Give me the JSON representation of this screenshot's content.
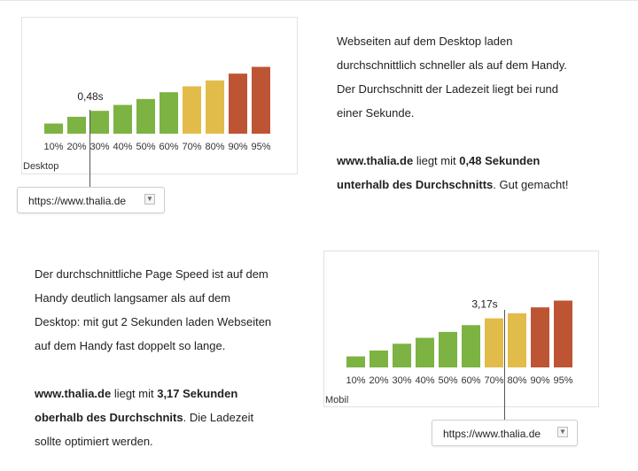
{
  "colors": {
    "green": "#7cb342",
    "yellow": "#e2bc4a",
    "red": "#bd5535",
    "text": "#222222"
  },
  "chart_data": [
    {
      "type": "bar",
      "title": "",
      "device_label": "Desktop",
      "categories": [
        "10%",
        "20%",
        "30%",
        "40%",
        "50%",
        "60%",
        "70%",
        "80%",
        "90%",
        "95%"
      ],
      "values": [
        0.12,
        0.2,
        0.27,
        0.34,
        0.41,
        0.49,
        0.56,
        0.63,
        0.71,
        0.79
      ],
      "bar_colors": [
        "green",
        "green",
        "green",
        "green",
        "green",
        "green",
        "yellow",
        "yellow",
        "red",
        "red"
      ],
      "ylim": [
        0,
        0.9
      ],
      "marker": {
        "value": 0.48,
        "label": "0,48s",
        "category_index": 2
      },
      "select_value": "https://www.thalia.de"
    },
    {
      "type": "bar",
      "title": "",
      "device_label": "Mobil",
      "categories": [
        "10%",
        "20%",
        "30%",
        "40%",
        "50%",
        "60%",
        "70%",
        "80%",
        "90%",
        "95%"
      ],
      "values": [
        0.13,
        0.2,
        0.28,
        0.35,
        0.42,
        0.5,
        0.58,
        0.64,
        0.71,
        0.79
      ],
      "bar_colors": [
        "green",
        "green",
        "green",
        "green",
        "green",
        "green",
        "yellow",
        "yellow",
        "red",
        "red"
      ],
      "ylim": [
        0,
        0.9
      ],
      "marker": {
        "value": 3.17,
        "label": "3,17s",
        "category_index": 6
      },
      "select_value": "https://www.thalia.de"
    }
  ],
  "desktop_text": {
    "p1_lines": [
      "Webseiten auf dem Desktop laden",
      "durchschnittlich schneller als auf dem Handy.",
      "Der Durchschnitt der Ladezeit liegt bei rund",
      "einer Sekunde."
    ],
    "p2_l1_site": "www.thalia.de",
    "p2_l1_mid": " liegt mit ",
    "p2_l1_bold": "0,48 Sekunden",
    "p2_l2_bold": "unterhalb des Durchschnitts",
    "p2_l2_rest": ". Gut gemacht!"
  },
  "mobile_text": {
    "p1_lines": [
      "Der durchschnittliche Page Speed ist auf dem",
      "Handy deutlich langsamer als auf dem",
      "Desktop: mit gut 2 Sekunden laden Webseiten",
      "auf dem Handy fast doppelt so lange."
    ],
    "p2_l1_site": "www.thalia.de",
    "p2_l1_mid": " liegt mit ",
    "p2_l1_bold": "3,17 Sekunden",
    "p2_l2_bold": "oberhalb des Durchschnits",
    "p2_l2_rest": ". Die Ladezeit",
    "p2_l3": "sollte optimiert werden."
  }
}
